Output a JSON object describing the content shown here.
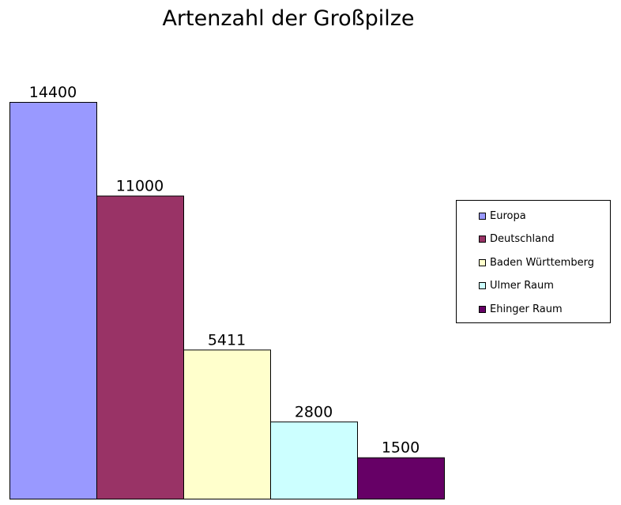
{
  "chart_data": {
    "type": "bar",
    "title": "Artenzahl der Großpilze",
    "xlabel": "",
    "ylabel": "",
    "ylim": [
      0,
      14400
    ],
    "grid": false,
    "legend_position": "right",
    "series": [
      {
        "name": "Europa",
        "value": 14400,
        "label": "14400",
        "color": "#9999ff"
      },
      {
        "name": "Deutschland",
        "value": 11000,
        "label": "11000",
        "color": "#993366"
      },
      {
        "name": "Baden Württemberg",
        "value": 5411,
        "label": "5411",
        "color": "#ffffcc"
      },
      {
        "name": "Ulmer Raum",
        "value": 2800,
        "label": "2800",
        "color": "#ccffff"
      },
      {
        "name": "Ehinger Raum",
        "value": 1500,
        "label": "1500",
        "color": "#660066"
      }
    ]
  }
}
